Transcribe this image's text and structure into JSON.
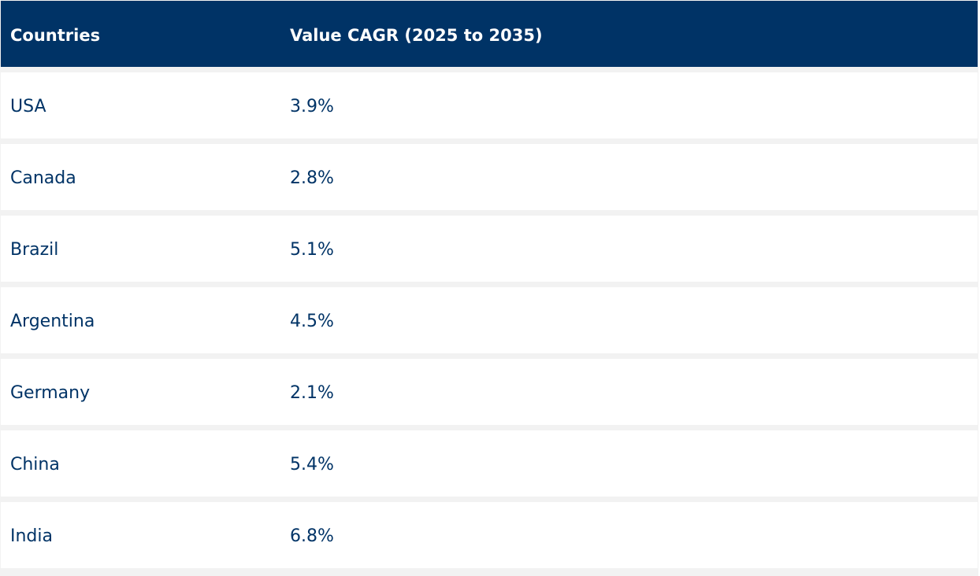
{
  "table": {
    "headers": [
      "Countries",
      "Value CAGR (2025 to 2035)"
    ],
    "rows": [
      [
        "USA",
        "3.9%"
      ],
      [
        "Canada",
        "2.8%"
      ],
      [
        "Brazil",
        "5.1%"
      ],
      [
        "Argentina",
        "4.5%"
      ],
      [
        "Germany",
        "2.1%"
      ],
      [
        "China",
        "5.4%"
      ],
      [
        "India",
        "6.8%"
      ]
    ]
  },
  "colors": {
    "header_background": "#003366",
    "header_text": "#ffffff",
    "body_text": "#003366",
    "row_background": "#ffffff",
    "row_gap": "#f2f2f2"
  }
}
